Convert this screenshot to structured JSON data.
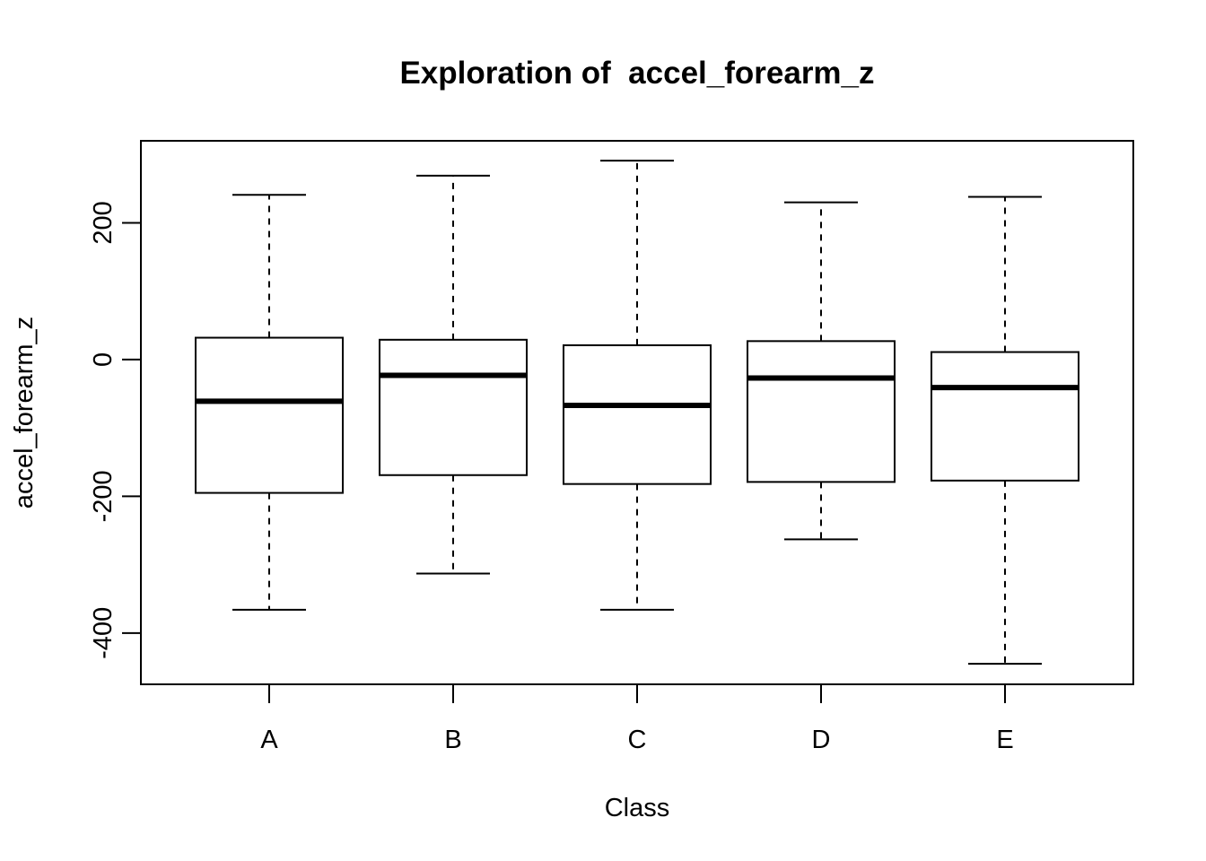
{
  "chart_data": {
    "type": "boxplot",
    "title": "Exploration of  accel_forearm_z",
    "xlabel": "Class",
    "ylabel": "accel_forearm_z",
    "categories": [
      "A",
      "B",
      "C",
      "D",
      "E"
    ],
    "boxes": [
      {
        "category": "A",
        "whisker_low": -366,
        "q1": -195,
        "median": -61,
        "q3": 32,
        "whisker_high": 241
      },
      {
        "category": "B",
        "whisker_low": -313,
        "q1": -169,
        "median": -23,
        "q3": 29,
        "whisker_high": 269
      },
      {
        "category": "C",
        "whisker_low": -366,
        "q1": -182,
        "median": -67,
        "q3": 21,
        "whisker_high": 291
      },
      {
        "category": "D",
        "whisker_low": -263,
        "q1": -179,
        "median": -27,
        "q3": 27,
        "whisker_high": 230
      },
      {
        "category": "E",
        "whisker_low": -445,
        "q1": -177,
        "median": -41,
        "q3": 11,
        "whisker_high": 238
      }
    ],
    "y_ticks": [
      -400,
      -200,
      0,
      200
    ],
    "y_tick_labels": [
      "-400",
      "-200",
      "0",
      "200"
    ],
    "ylim": [
      -475,
      320
    ],
    "grid": false,
    "legend": "none"
  }
}
